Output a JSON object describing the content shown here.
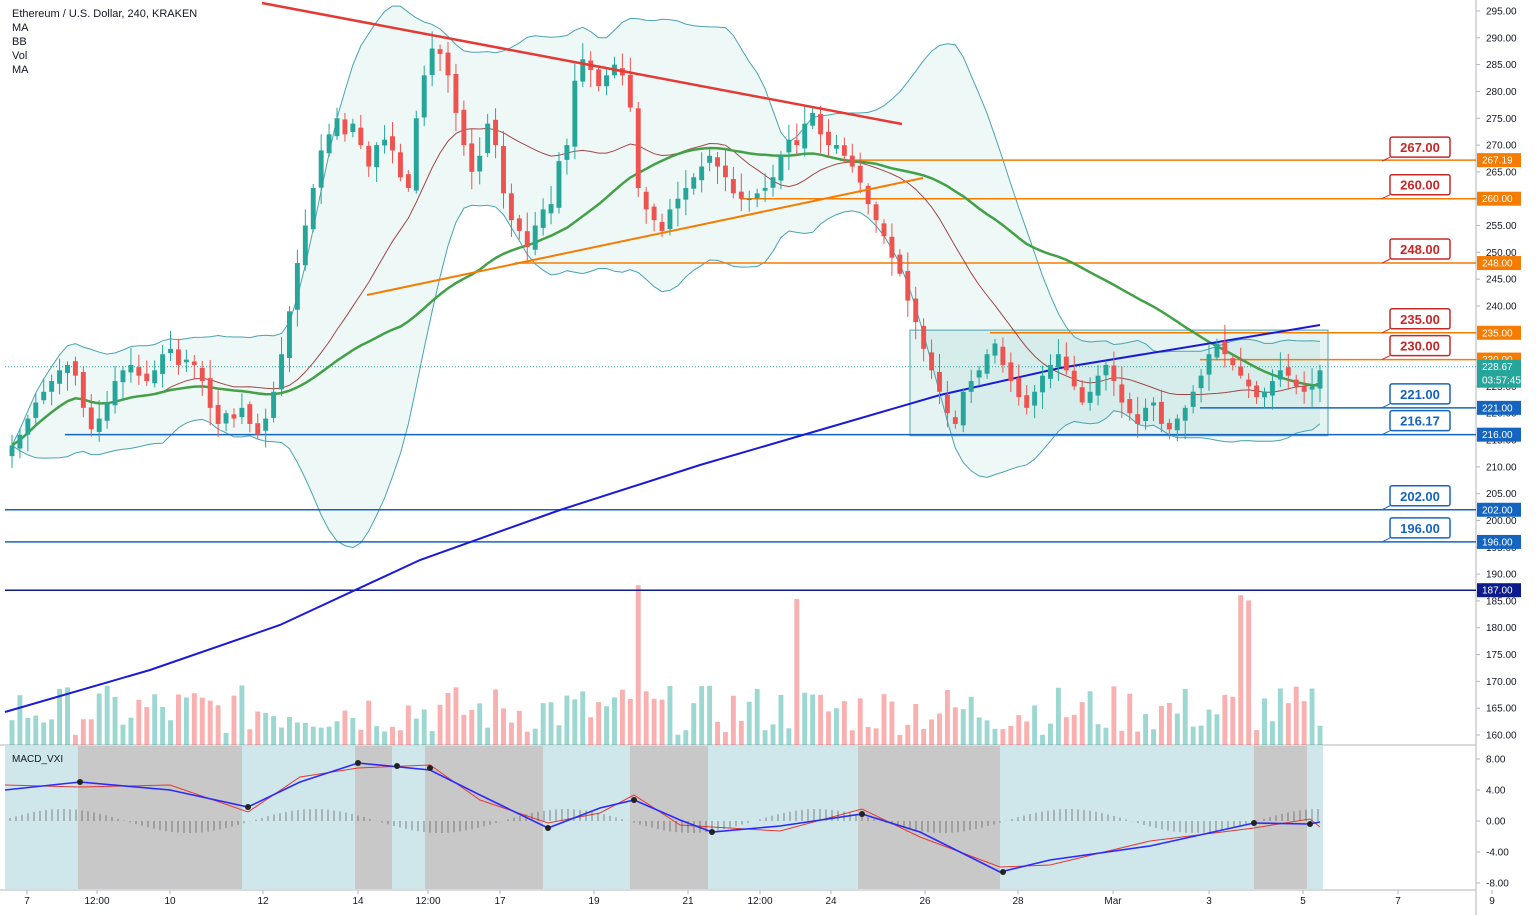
{
  "header": {
    "title": "Ethereum / U.S. Dollar, 240, KRAKEN",
    "indicators": [
      "MA",
      "BB",
      "Vol",
      "MA"
    ]
  },
  "colors": {
    "up": "#26a69a",
    "down": "#ef5350",
    "red_trend": "#e53935",
    "orange": "#f57c00",
    "blue_line": "#1565c0",
    "ma_green": "#43a047",
    "ma200": "#1a1ad6",
    "price_tag": "#26a69a"
  },
  "price_axis": {
    "ticks": [
      "295.00",
      "290.00",
      "285.00",
      "280.00",
      "275.00",
      "270.00",
      "265.00",
      "260.00",
      "255.00",
      "250.00",
      "245.00",
      "240.00",
      "235.00",
      "230.00",
      "225.00",
      "220.00",
      "215.00",
      "210.00",
      "205.00",
      "200.00",
      "195.00",
      "190.00",
      "185.00",
      "180.00",
      "175.00",
      "170.00",
      "165.00",
      "160.00"
    ],
    "current_price": "228.67",
    "countdown": "03:57:45"
  },
  "time_axis": {
    "labels": [
      "7",
      "12:00",
      "10",
      "12",
      "14",
      "12:00",
      "17",
      "19",
      "21",
      "12:00",
      "24",
      "26",
      "28",
      "Mar",
      "3",
      "5",
      "7",
      "9"
    ]
  },
  "annotations": {
    "callouts": [
      {
        "label": "267.00",
        "price": 267,
        "color": "red"
      },
      {
        "label": "260.00",
        "price": 260,
        "color": "red"
      },
      {
        "label": "248.00",
        "price": 248,
        "color": "red"
      },
      {
        "label": "235.00",
        "price": 235,
        "color": "red"
      },
      {
        "label": "230.00",
        "price": 230,
        "color": "red"
      },
      {
        "label": "221.00",
        "price": 221,
        "color": "blue"
      },
      {
        "label": "216.17",
        "price": 216,
        "color": "blue"
      },
      {
        "label": "202.00",
        "price": 202,
        "color": "blue"
      },
      {
        "label": "196.00",
        "price": 196,
        "color": "blue"
      }
    ],
    "axis_tags": [
      {
        "label": "267.19",
        "price": 267.19,
        "color": "orange"
      },
      {
        "label": "260.00",
        "price": 260,
        "color": "orange"
      },
      {
        "label": "248.00",
        "price": 248,
        "color": "orange"
      },
      {
        "label": "235.00",
        "price": 235,
        "color": "orange"
      },
      {
        "label": "230.00",
        "price": 230,
        "color": "orange"
      },
      {
        "label": "221.00",
        "price": 221,
        "color": "blue"
      },
      {
        "label": "216.00",
        "price": 216,
        "color": "blue"
      },
      {
        "label": "202.00",
        "price": 202,
        "color": "blue"
      },
      {
        "label": "196.00",
        "price": 196,
        "color": "blue"
      },
      {
        "label": "187.00",
        "price": 187,
        "color": "navy"
      }
    ]
  },
  "macd": {
    "title": "MACD_VXI",
    "ticks": [
      "8.00",
      "4.00",
      "0.00",
      "-4.00",
      "-8.00"
    ]
  },
  "chart_data": {
    "type": "candlestick",
    "title": "Ethereum / U.S. Dollar, 240, KRAKEN",
    "ylim": [
      158,
      297
    ],
    "closes": [
      214,
      216,
      219,
      222,
      224,
      226,
      228,
      229,
      227,
      221,
      217,
      219,
      222,
      226,
      228,
      229,
      227,
      226,
      228,
      231,
      232,
      229,
      230,
      229,
      226,
      221,
      218,
      220,
      219,
      221,
      218,
      216,
      219,
      224,
      231,
      239,
      248,
      255,
      262,
      269,
      272,
      275,
      272,
      274,
      270,
      266,
      270,
      271,
      269,
      264,
      262,
      275,
      283,
      288,
      287,
      283,
      276,
      270,
      265,
      268,
      274,
      270,
      261,
      256,
      254,
      251,
      255,
      258,
      259,
      267,
      270,
      282,
      286,
      284,
      281,
      283,
      285,
      283,
      277,
      262,
      258,
      256,
      254,
      258,
      260,
      262,
      264,
      266,
      268,
      266,
      264,
      261,
      260,
      260,
      261,
      262,
      264,
      268,
      271,
      270,
      274,
      276,
      272,
      270,
      270,
      268,
      266,
      263,
      259,
      256,
      253,
      249,
      246,
      241,
      237,
      232,
      228,
      224,
      220,
      218,
      224,
      226,
      228,
      231,
      233,
      229,
      226,
      223,
      221,
      224,
      227,
      229,
      231,
      228,
      225,
      222,
      224,
      227,
      229,
      226,
      222,
      220,
      218,
      221,
      222,
      218,
      217,
      219,
      221,
      224,
      227,
      231,
      233,
      231,
      229,
      227,
      225,
      223,
      224,
      226,
      228,
      227,
      225,
      224,
      225,
      228
    ]
  }
}
